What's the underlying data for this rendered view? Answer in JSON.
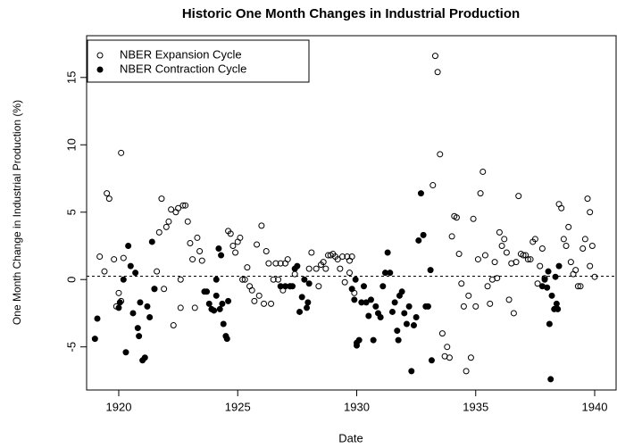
{
  "chart_data": {
    "type": "scatter",
    "title": "Historic One Month Changes in Industrial Production",
    "xlabel": "Date",
    "ylabel": "One Month Change in Industrial Production (%)",
    "xlim": [
      1918.65,
      1940.9
    ],
    "ylim": [
      -8.2,
      18.1
    ],
    "xticks": [
      1920,
      1925,
      1930,
      1935,
      1940
    ],
    "yticks": [
      -5,
      0,
      5,
      10,
      15
    ],
    "hline": 0.25,
    "legend": "top-left",
    "series": [
      {
        "name": "NBER Expansion Cycle",
        "color": "#000000",
        "marker": "open",
        "x": [
          1919.2,
          1919.4,
          1919.5,
          1919.6,
          1919.8,
          1919.9,
          1920.0,
          1920.1,
          1920.2,
          1920.1,
          1921.5,
          1921.6,
          1921.7,
          1921.8,
          1921.9,
          1922.0,
          1922.1,
          1922.2,
          1922.3,
          1922.4,
          1922.5,
          1922.6,
          1922.7,
          1922.8,
          1922.9,
          1923.0,
          1923.1,
          1923.2,
          1923.3,
          1923.4,
          1923.5,
          1922.6,
          1924.6,
          1924.7,
          1924.8,
          1924.9,
          1925.0,
          1925.1,
          1925.2,
          1925.3,
          1925.4,
          1925.5,
          1925.6,
          1925.7,
          1925.8,
          1925.9,
          1926.0,
          1926.1,
          1926.2,
          1926.3,
          1926.4,
          1926.5,
          1926.6,
          1926.7,
          1926.8,
          1926.9,
          1927.0,
          1927.1,
          1927.2,
          1927.4,
          1928.0,
          1928.1,
          1928.3,
          1928.4,
          1928.5,
          1928.6,
          1928.7,
          1928.8,
          1928.9,
          1929.0,
          1929.1,
          1929.2,
          1929.3,
          1929.4,
          1929.5,
          1929.6,
          1929.7,
          1929.8,
          1929.9,
          1929.7,
          1933.2,
          1933.3,
          1933.4,
          1933.5,
          1933.6,
          1933.7,
          1933.8,
          1933.9,
          1934.0,
          1934.1,
          1934.2,
          1934.3,
          1934.4,
          1934.5,
          1934.6,
          1934.7,
          1934.8,
          1934.9,
          1935.0,
          1935.1,
          1935.2,
          1935.3,
          1935.4,
          1935.5,
          1935.6,
          1935.7,
          1935.8,
          1935.9,
          1936.0,
          1936.1,
          1936.2,
          1936.3,
          1936.4,
          1936.5,
          1936.6,
          1936.7,
          1936.8,
          1936.9,
          1937.0,
          1937.1,
          1937.2,
          1937.3,
          1937.4,
          1937.5,
          1937.6,
          1937.7,
          1937.8,
          1937.9,
          1938.5,
          1938.6,
          1938.7,
          1938.8,
          1938.9,
          1939.0,
          1939.1,
          1939.2,
          1939.3,
          1939.4,
          1939.5,
          1939.6,
          1939.7,
          1939.8,
          1939.9,
          1940.0,
          1939.8
        ],
        "values": [
          1.7,
          0.6,
          6.4,
          6.0,
          1.5,
          -2.0,
          -1.0,
          -1.6,
          1.6,
          9.4,
          -0.7,
          0.6,
          3.5,
          6.0,
          -0.7,
          3.9,
          4.3,
          5.2,
          -3.4,
          5.0,
          5.3,
          0,
          5.5,
          5.5,
          4.3,
          2.7,
          1.5,
          -2.1,
          3.1,
          2.1,
          1.4,
          -2.1,
          3.6,
          3.4,
          2.5,
          2.0,
          2.8,
          3.1,
          0,
          0,
          0.9,
          -0.5,
          -0.8,
          -1.6,
          2.6,
          -1.2,
          4.0,
          -1.8,
          2.1,
          1.2,
          -1.8,
          0,
          1.2,
          0,
          1.2,
          -0.8,
          1.2,
          1.5,
          -0.5,
          0.4,
          0.8,
          2.0,
          0.8,
          -0.5,
          1.1,
          1.3,
          0.8,
          1.8,
          1.8,
          1.9,
          1.7,
          1.5,
          0.8,
          1.7,
          -0.2,
          1.7,
          1.4,
          1.7,
          -1.0,
          0.5,
          7.0,
          16.6,
          15.4,
          9.3,
          -4.0,
          -5.7,
          -5.0,
          -5.8,
          3.2,
          4.7,
          4.6,
          1.9,
          -0.3,
          -2.0,
          -6.8,
          -1.2,
          -5.8,
          4.5,
          -2.0,
          1.5,
          6.4,
          8.0,
          1.8,
          -0.5,
          -1.8,
          0,
          1.3,
          0.1,
          3.5,
          2.5,
          3.0,
          2.0,
          -1.5,
          1.2,
          -2.5,
          1.3,
          6.2,
          1.9,
          1.8,
          1.8,
          1.5,
          1.5,
          2.8,
          3.0,
          -0.3,
          1.0,
          2.3,
          0.1,
          5.6,
          5.3,
          3.0,
          2.5,
          3.9,
          1.3,
          0.4,
          0.7,
          -0.5,
          -0.5,
          2.3,
          3.0,
          6.0,
          5.0,
          2.5,
          0.2,
          1.0
        ]
      },
      {
        "name": "NBER Contraction Cycle",
        "color": "#000000",
        "marker": "filled",
        "x": [
          1919.0,
          1919.1,
          1920.2,
          1920.3,
          1920.4,
          1920.5,
          1920.6,
          1920.7,
          1920.8,
          1920.85,
          1920.9,
          1921.0,
          1921.1,
          1921.2,
          1921.3,
          1921.4,
          1921.5,
          1920.0,
          1920.05,
          1923.6,
          1923.7,
          1923.8,
          1923.9,
          1924.0,
          1924.1,
          1924.2,
          1924.3,
          1924.35,
          1924.4,
          1924.5,
          1924.55,
          1924.6,
          1924.25,
          1924.1,
          1926.8,
          1927.0,
          1927.2,
          1927.3,
          1927.4,
          1927.5,
          1927.6,
          1927.7,
          1927.8,
          1927.9,
          1927.95,
          1928.0,
          1929.8,
          1929.9,
          1930.0,
          1930.1,
          1930.2,
          1930.3,
          1930.4,
          1930.5,
          1930.6,
          1930.7,
          1930.8,
          1930.9,
          1931.0,
          1931.1,
          1931.2,
          1931.3,
          1931.4,
          1931.5,
          1931.6,
          1931.7,
          1931.75,
          1931.8,
          1931.9,
          1932.0,
          1932.1,
          1932.2,
          1932.3,
          1932.4,
          1932.5,
          1932.6,
          1932.7,
          1932.8,
          1932.9,
          1933.0,
          1933.1,
          1933.15,
          1929.95,
          1930.0,
          1937.8,
          1937.9,
          1938.0,
          1938.1,
          1938.15,
          1938.2,
          1938.3,
          1938.4,
          1938.45,
          1938.5,
          1938.35,
          1938.05
        ],
        "values": [
          -4.4,
          -2.9,
          0,
          -5.4,
          2.5,
          1.0,
          -2.5,
          0.5,
          -3.6,
          -4.2,
          -1.7,
          -6.0,
          -5.8,
          -2.0,
          -2.8,
          2.8,
          -0.7,
          -2.1,
          -1.7,
          -0.9,
          -0.9,
          -1.8,
          -2.2,
          -2.3,
          0,
          2.3,
          1.8,
          -1.8,
          -3.3,
          -4.2,
          -4.4,
          -1.6,
          -2.2,
          -1.2,
          -0.5,
          -0.5,
          -0.5,
          -0.5,
          0.8,
          1.0,
          -2.4,
          -1.3,
          0,
          -2.1,
          -1.7,
          -0.3,
          -0.7,
          -1.5,
          -4.7,
          -4.5,
          -1.7,
          -0.5,
          -1.7,
          -2.7,
          -1.5,
          -4.5,
          -2.0,
          -2.5,
          -2.8,
          -0.5,
          0.5,
          2.0,
          0.5,
          -2.4,
          -1.7,
          -3.8,
          -4.5,
          -1.2,
          -0.9,
          -2.5,
          -3.3,
          -2.0,
          -6.8,
          -3.4,
          -2.8,
          2.9,
          6.4,
          3.3,
          -2.0,
          -2.0,
          0.7,
          -6.0,
          0,
          -4.9,
          -0.5,
          0,
          -0.6,
          -3.3,
          -7.4,
          -1.2,
          -2.2,
          -1.8,
          -2.2,
          1.0,
          0.2,
          0.6
        ]
      }
    ]
  }
}
